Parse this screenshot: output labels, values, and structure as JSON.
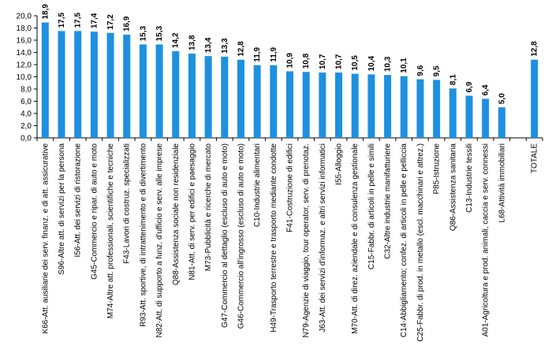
{
  "chart_data": {
    "type": "bar",
    "title": "",
    "xlabel": "",
    "ylabel": "",
    "ylim": [
      0,
      20
    ],
    "yticks": [
      "0,0",
      "2,0",
      "4,0",
      "6,0",
      "8,0",
      "10,0",
      "12,0",
      "14,0",
      "16,0",
      "18,0",
      "20,0"
    ],
    "grid": false,
    "legend": "none",
    "bar_color": "#1e90e0",
    "categories": [
      "K66-Att. ausiliarie dei serv. finanz. e di att. assicurative",
      "S96-Altre att. di servizi per la persona",
      "I56-Att. dei servizi di ristorazione",
      "G45-Commercio e ripar. di auto e moto",
      "M74-Altre att. professionali, scientifiche e tecniche",
      "F43-Lavori di costruz. specializzati",
      "R93-Att. sportive, di intrattenimento e di divertimento",
      "N82-Att. di supporto a funz. d'ufficio e serv. alle imprese",
      "Q88-Assistenza sociale non residenziale",
      "N81-Att. di serv. per edifici e paesaggio",
      "M73-Pubblicità e ricerche di mercato",
      "G47-Commercio al dettaglio (escluso di auto e moto)",
      "G46-Commercio all'ingrosso (escluso di auto e moto)",
      "C10-Industrie alimentari",
      "H49-Trasporto terrestre e trasporto mediante condotte",
      "F41-Costruzione di edifici",
      "N79-Agenzie di viaggio, tour operator, serv. di prenotaz.",
      "J63-Att. dei servizi d'informaz. e altri servizi informatici",
      "I55-Alloggio",
      "M70-Att. di direz. aziendale e di consulenza gestionale",
      "C15-Fabbr. di articoli in pelle e simili",
      "C32-Altre industrie manifatturiere",
      "C14-Abbigliamento; confez. di articoli in pelle e pelliccia",
      "C25-Fabbr. di prod. in metallo (escl. macchinari e attrez.)",
      "P85-Istruzione",
      "Q86-Assistenza sanitaria",
      "C13-Industrie tessili",
      "A01-Agricoltura e prod. animali, caccia e serv. connessi",
      "L68-Attività immobiliari",
      "",
      "TOTALE"
    ],
    "values": [
      18.9,
      17.5,
      17.5,
      17.4,
      17.2,
      16.9,
      15.3,
      15.3,
      14.2,
      13.8,
      13.4,
      13.3,
      12.8,
      11.9,
      11.9,
      10.9,
      10.8,
      10.7,
      10.7,
      10.5,
      10.4,
      10.3,
      10.1,
      9.6,
      9.5,
      8.1,
      6.9,
      6.4,
      5.0,
      null,
      12.8
    ],
    "data_labels": [
      "18,9",
      "17,5",
      "17,5",
      "17,4",
      "17,2",
      "16,9",
      "15,3",
      "15,3",
      "14,2",
      "13,8",
      "13,4",
      "13,3",
      "12,8",
      "11,9",
      "11,9",
      "10,9",
      "10,8",
      "10,7",
      "10,7",
      "10,5",
      "10,4",
      "10,3",
      "10,1",
      "9,6",
      "9,5",
      "8,1",
      "6,9",
      "6,4",
      "5,0",
      "",
      "12,8"
    ]
  }
}
